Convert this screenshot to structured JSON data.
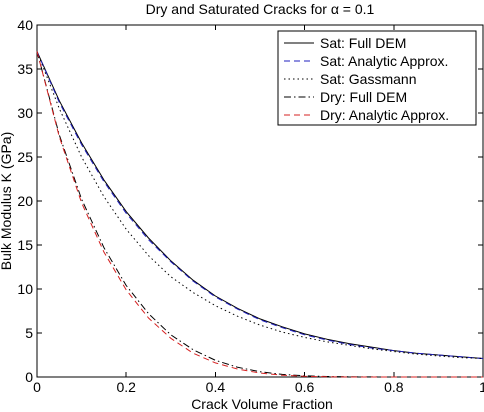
{
  "chart_data": {
    "type": "line",
    "title": "Dry and Saturated Cracks for α = 0.1",
    "xlabel": "Crack Volume Fraction",
    "ylabel": "Bulk Modulus K (GPa)",
    "xlim": [
      0,
      1
    ],
    "ylim": [
      0,
      40
    ],
    "x_ticks": [
      0,
      0.2,
      0.4,
      0.6,
      0.8,
      1
    ],
    "x_tick_labels": [
      "0",
      "0.2",
      "0.4",
      "0.6",
      "0.8",
      "1"
    ],
    "y_ticks": [
      0,
      5,
      10,
      15,
      20,
      25,
      30,
      35,
      40
    ],
    "y_tick_labels": [
      "0",
      "5",
      "10",
      "15",
      "20",
      "25",
      "30",
      "35",
      "40"
    ],
    "grid": false,
    "legend_position": "top-right",
    "x": [
      0,
      0.05,
      0.1,
      0.15,
      0.2,
      0.25,
      0.3,
      0.35,
      0.4,
      0.45,
      0.5,
      0.55,
      0.6,
      0.65,
      0.7,
      0.75,
      0.8,
      0.85,
      0.9,
      0.95,
      1.0
    ],
    "series": [
      {
        "name": "Sat: Full DEM",
        "color": "#000000",
        "dash": "solid",
        "values": [
          37.0,
          31.4,
          26.6,
          22.4,
          18.8,
          15.8,
          13.2,
          11.0,
          9.2,
          7.8,
          6.6,
          5.7,
          4.9,
          4.3,
          3.8,
          3.4,
          3.0,
          2.7,
          2.5,
          2.3,
          2.1
        ]
      },
      {
        "name": "Sat: Analytic Approx.",
        "color": "#1f1fbf",
        "dash": "dashed",
        "values": [
          37.0,
          31.2,
          26.4,
          22.2,
          18.6,
          15.6,
          13.1,
          10.9,
          9.1,
          7.7,
          6.5,
          5.6,
          4.8,
          4.2,
          3.7,
          3.3,
          3.0,
          2.7,
          2.5,
          2.3,
          2.1
        ]
      },
      {
        "name": "Sat: Gassmann",
        "color": "#000000",
        "dash": "dotted",
        "values": [
          37.0,
          30.5,
          25.0,
          20.5,
          16.8,
          13.8,
          11.4,
          9.6,
          8.1,
          6.9,
          5.9,
          5.1,
          4.5,
          4.0,
          3.6,
          3.2,
          2.9,
          2.6,
          2.4,
          2.2,
          2.1
        ]
      },
      {
        "name": "Dry: Full DEM",
        "color": "#000000",
        "dash": "dashdot",
        "values": [
          37.0,
          27.5,
          20.2,
          14.7,
          10.4,
          7.2,
          4.8,
          3.1,
          1.9,
          1.1,
          0.6,
          0.3,
          0.14,
          0.06,
          0.02,
          0.01,
          0,
          0,
          0,
          0,
          0
        ]
      },
      {
        "name": "Dry: Analytic Approx.",
        "color": "#d62020",
        "dash": "dashed",
        "values": [
          37.0,
          27.3,
          19.8,
          14.2,
          9.9,
          6.7,
          4.4,
          2.7,
          1.6,
          0.9,
          0.45,
          0.2,
          0.08,
          0.02,
          0,
          0,
          0,
          0,
          0,
          0,
          0
        ]
      }
    ]
  }
}
